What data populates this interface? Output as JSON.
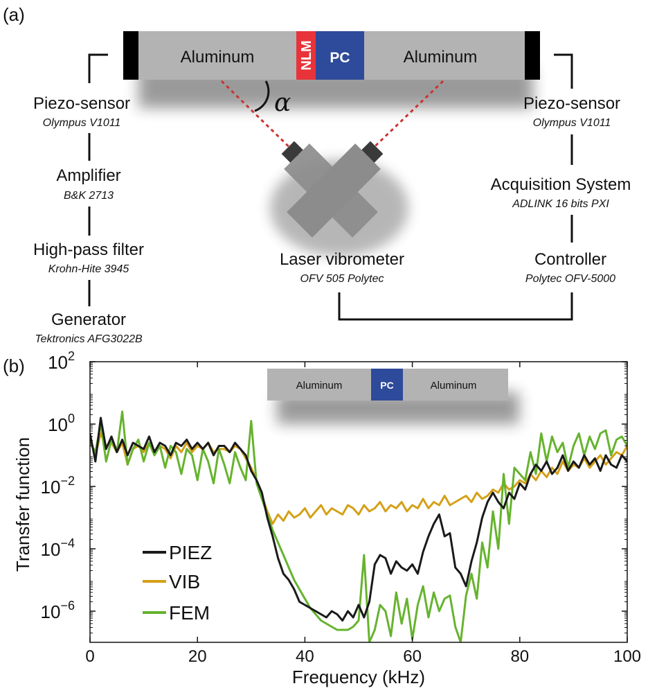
{
  "panel_a": {
    "label": "(a)",
    "bar": {
      "left_material": "Aluminum",
      "nlm": "NLM",
      "pc": "PC",
      "right_material": "Aluminum"
    },
    "angle_symbol": "α",
    "left_chain": [
      {
        "name": "Piezo-sensor",
        "model": "Olympus V1011"
      },
      {
        "name": "Amplifier",
        "model": "B&K 2713"
      },
      {
        "name": "High-pass filter",
        "model": "Krohn-Hite 3945"
      },
      {
        "name": "Generator",
        "model": "Tektronics AFG3022B"
      }
    ],
    "right_chain": [
      {
        "name": "Piezo-sensor",
        "model": "Olympus V1011"
      },
      {
        "name": "Acquisition System",
        "model": "ADLINK 16 bits PXI"
      },
      {
        "name": "Controller",
        "model": "Polytec OFV-5000"
      }
    ],
    "vibrometer": {
      "name": "Laser vibrometer",
      "model": "OFV 505 Polytec"
    },
    "colors": {
      "aluminum": "#b3b3b3",
      "nlm": "#e8333a",
      "pc": "#2e4a9a",
      "clamp": "#000000",
      "laser": "#cc3333",
      "head": "#8c8c8c"
    }
  },
  "panel_b": {
    "label": "(b)",
    "inset": {
      "left_material": "Aluminum",
      "pc": "PC",
      "right_material": "Aluminum"
    }
  },
  "chart_data": {
    "type": "line",
    "xlabel": "Frequency (kHz)",
    "ylabel": "Transfer function",
    "xlim": [
      0,
      100
    ],
    "ylim_log10": [
      -7,
      2
    ],
    "y_scale": "log",
    "x_ticks": [
      "0",
      "20",
      "40",
      "60",
      "80",
      "100"
    ],
    "y_tick_base": "10",
    "y_tick_exponents": [
      "2",
      "0",
      "−2",
      "−4",
      "−6"
    ],
    "y_tick_values_log10": [
      2,
      0,
      -2,
      -4,
      -6
    ],
    "legend_position": "bottom-left",
    "grid": false,
    "series": [
      {
        "name": "PIEZ",
        "color": "#1a1a1a",
        "x": [
          0,
          1,
          2,
          3,
          4,
          5,
          6,
          7,
          8,
          9,
          10,
          11,
          12,
          13,
          14,
          15,
          16,
          17,
          18,
          19,
          20,
          21,
          22,
          23,
          24,
          25,
          26,
          27,
          28,
          29,
          30,
          31,
          32,
          33,
          34,
          35,
          36,
          37,
          38,
          39,
          40,
          41,
          42,
          43,
          44,
          45,
          46,
          47,
          48,
          49,
          50,
          51,
          52,
          53,
          54,
          55,
          56,
          57,
          58,
          59,
          60,
          61,
          62,
          63,
          64,
          65,
          66,
          67,
          68,
          69,
          70,
          71,
          72,
          73,
          74,
          75,
          76,
          77,
          78,
          79,
          80,
          81,
          82,
          83,
          84,
          85,
          86,
          87,
          88,
          89,
          90,
          91,
          92,
          93,
          94,
          95,
          96,
          97,
          98,
          99,
          100
        ],
        "log10_y": [
          -0.3,
          -1.2,
          0.2,
          -0.8,
          -0.4,
          -0.9,
          -0.5,
          -1.0,
          -0.6,
          -0.7,
          -0.8,
          -0.4,
          -0.9,
          -0.6,
          -0.7,
          -1.0,
          -0.6,
          -0.7,
          -0.5,
          -0.8,
          -0.6,
          -0.8,
          -0.6,
          -1.0,
          -0.7,
          -0.7,
          -0.9,
          -0.6,
          -0.8,
          -1.0,
          -1.5,
          -1.8,
          -2.2,
          -3.0,
          -3.6,
          -4.3,
          -4.8,
          -5.0,
          -5.3,
          -5.7,
          -5.8,
          -5.9,
          -6.0,
          -6.1,
          -6.2,
          -6.0,
          -6.1,
          -6.3,
          -6.0,
          -6.2,
          -5.8,
          -6.2,
          -5.7,
          -4.5,
          -4.2,
          -4.3,
          -4.8,
          -4.4,
          -4.6,
          -4.7,
          -4.5,
          -4.8,
          -4.1,
          -3.6,
          -3.2,
          -2.9,
          -3.6,
          -3.5,
          -4.6,
          -4.8,
          -5.2,
          -4.4,
          -3.8,
          -3.0,
          -2.5,
          -2.2,
          -2.5,
          -2.7,
          -2.2,
          -2.4,
          -1.9,
          -2.1,
          -1.6,
          -1.3,
          -1.5,
          -1.2,
          -1.6,
          -1.4,
          -1.0,
          -1.5,
          -1.2,
          -1.4,
          -1.0,
          -1.3,
          -1.1,
          -1.5,
          -1.0,
          -1.3,
          -1.4,
          -1.0,
          -1.2
        ]
      },
      {
        "name": "VIB",
        "color": "#d4a017",
        "x": [
          0,
          1,
          2,
          3,
          4,
          5,
          6,
          7,
          8,
          9,
          10,
          11,
          12,
          13,
          14,
          15,
          16,
          17,
          18,
          19,
          20,
          21,
          22,
          23,
          24,
          25,
          26,
          27,
          28,
          29,
          30,
          31,
          32,
          33,
          34,
          35,
          36,
          37,
          38,
          39,
          40,
          41,
          42,
          43,
          44,
          45,
          46,
          47,
          48,
          49,
          50,
          51,
          52,
          53,
          54,
          55,
          56,
          57,
          58,
          59,
          60,
          61,
          62,
          63,
          64,
          65,
          66,
          67,
          68,
          69,
          70,
          71,
          72,
          73,
          74,
          75,
          76,
          77,
          78,
          79,
          80,
          81,
          82,
          83,
          84,
          85,
          86,
          87,
          88,
          89,
          90,
          91,
          92,
          93,
          94,
          95,
          96,
          97,
          98,
          99,
          100
        ],
        "log10_y": [
          -0.5,
          -1.0,
          -0.3,
          -0.7,
          -0.6,
          -0.9,
          -0.6,
          -1.3,
          -0.8,
          -0.7,
          -0.9,
          -0.6,
          -1.0,
          -0.7,
          -0.8,
          -1.1,
          -0.7,
          -0.9,
          -0.6,
          -0.9,
          -0.7,
          -0.8,
          -0.6,
          -0.9,
          -0.8,
          -0.8,
          -0.9,
          -0.7,
          -0.8,
          -1.1,
          -1.4,
          -1.8,
          -2.3,
          -2.8,
          -3.2,
          -2.9,
          -3.1,
          -2.8,
          -3.0,
          -2.9,
          -2.7,
          -3.0,
          -2.8,
          -2.6,
          -2.9,
          -2.7,
          -2.8,
          -2.9,
          -2.6,
          -2.7,
          -2.9,
          -2.6,
          -2.8,
          -2.7,
          -2.5,
          -2.8,
          -2.6,
          -2.7,
          -2.5,
          -2.8,
          -2.6,
          -2.7,
          -2.4,
          -2.7,
          -2.5,
          -2.6,
          -2.3,
          -2.6,
          -2.5,
          -2.4,
          -2.3,
          -2.5,
          -2.2,
          -2.4,
          -2.3,
          -2.1,
          -2.2,
          -1.9,
          -2.1,
          -2.0,
          -1.8,
          -1.9,
          -1.6,
          -1.8,
          -1.5,
          -1.7,
          -1.4,
          -1.6,
          -1.2,
          -1.5,
          -1.3,
          -1.4,
          -1.1,
          -1.4,
          -1.2,
          -1.0,
          -1.3,
          -1.1,
          -0.9,
          -1.0,
          -0.7
        ]
      },
      {
        "name": "FEM",
        "color": "#66b32e",
        "x": [
          0,
          1,
          2,
          3,
          4,
          5,
          6,
          7,
          8,
          9,
          10,
          11,
          12,
          13,
          14,
          15,
          16,
          17,
          18,
          19,
          20,
          21,
          22,
          23,
          24,
          25,
          26,
          27,
          28,
          29,
          30,
          31,
          32,
          33,
          34,
          35,
          36,
          37,
          38,
          39,
          40,
          41,
          42,
          43,
          44,
          45,
          46,
          47,
          48,
          49,
          50,
          51,
          52,
          53,
          54,
          55,
          56,
          57,
          58,
          59,
          60,
          61,
          62,
          63,
          64,
          65,
          66,
          67,
          68,
          69,
          70,
          71,
          72,
          73,
          74,
          75,
          76,
          77,
          78,
          79,
          80,
          81,
          82,
          83,
          84,
          85,
          86,
          87,
          88,
          89,
          90,
          91,
          92,
          93,
          94,
          95,
          96,
          97,
          98,
          99,
          100
        ],
        "log10_y": [
          -0.6,
          -0.9,
          0.0,
          -1.2,
          -0.5,
          -0.9,
          0.4,
          -1.3,
          -0.8,
          -0.5,
          -1.2,
          -0.6,
          -1.0,
          -0.7,
          -1.4,
          -0.7,
          -0.9,
          -1.6,
          -0.8,
          -1.0,
          -1.8,
          -0.8,
          -1.2,
          -1.9,
          -0.8,
          -1.3,
          -1.9,
          -0.9,
          -1.4,
          -1.8,
          0.1,
          -1.9,
          -2.4,
          -2.9,
          -3.4,
          -3.8,
          -4.2,
          -4.6,
          -5.0,
          -5.3,
          -5.6,
          -5.9,
          -6.1,
          -6.3,
          -6.4,
          -6.5,
          -6.6,
          -6.6,
          -6.6,
          -6.5,
          -6.3,
          -4.2,
          -7.0,
          -6.6,
          -5.8,
          -6.0,
          -6.8,
          -5.4,
          -6.4,
          -5.6,
          -6.9,
          -5.8,
          -5.2,
          -6.2,
          -5.4,
          -6.0,
          -5.6,
          -5.5,
          -6.5,
          -7.0,
          -5.5,
          -4.8,
          -5.6,
          -3.8,
          -4.6,
          -2.8,
          -4.0,
          -1.6,
          -3.2,
          -1.4,
          -1.6,
          -1.8,
          -0.9,
          -1.6,
          -0.3,
          -1.2,
          -0.4,
          -0.9,
          -0.6,
          -1.4,
          -0.7,
          -0.3,
          -1.0,
          -0.4,
          -0.8,
          -0.3,
          -0.2,
          -1.0,
          -0.5,
          -0.4,
          -0.7
        ]
      }
    ]
  }
}
